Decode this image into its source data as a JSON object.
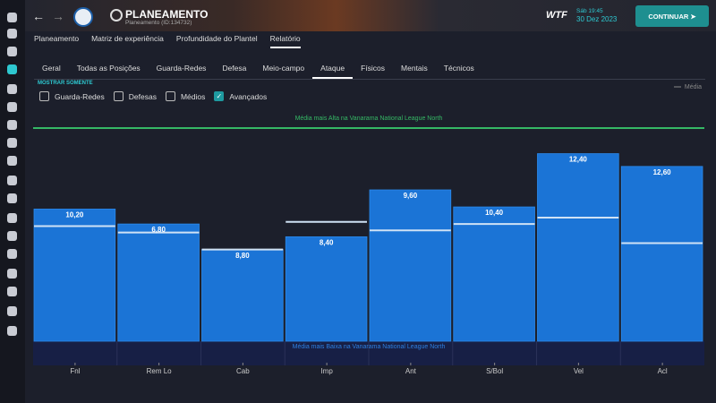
{
  "header": {
    "title": "PLANEAMENTO",
    "subtitle": "Planeamento (ID:134732)",
    "logo": "WTF",
    "day_time": "Sáb 19:45",
    "date": "30 Dez 2023",
    "button": "CONTINUAR"
  },
  "nav": {
    "items": [
      "Planeamento",
      "Matriz de experiência",
      "Profundidade do Plantel",
      "Relatório"
    ],
    "selected": 3
  },
  "tabs": {
    "items": [
      "Geral",
      "Todas as Posições",
      "Guarda-Redes",
      "Defesa",
      "Meio-campo",
      "Ataque",
      "Físicos",
      "Mentais",
      "Técnicos"
    ],
    "selected": 5
  },
  "filter": {
    "label": "MOSTRAR SOMENTE",
    "options": [
      {
        "label": "Guarda-Redes",
        "checked": false
      },
      {
        "label": "Defesas",
        "checked": false
      },
      {
        "label": "Médios",
        "checked": false
      },
      {
        "label": "Avançados",
        "checked": true
      }
    ]
  },
  "chart_data": {
    "type": "bar",
    "legend": "Média",
    "top_label": "Média mais Alta na Vanarama National League North",
    "bottom_label": "Média mais Baixa na Vanarama National League North",
    "categories": [
      "Fnl",
      "Rem Lo",
      "Cab",
      "Imp",
      "Ant",
      "S/Bol",
      "Vel",
      "Acl"
    ],
    "values": [
      62,
      55,
      43,
      49,
      71,
      63,
      88,
      82
    ],
    "averages": [
      54,
      51,
      43,
      56,
      52,
      55,
      58,
      46
    ],
    "ratings": [
      10.2,
      6.8,
      8.8,
      8.4,
      9.6,
      10.4,
      12.4,
      12.6
    ],
    "rating_labels": [
      "10,20",
      "6,80",
      "8,80",
      "8,40",
      "9,60",
      "10,40",
      "12,40",
      "12,60"
    ],
    "ylim": [
      0,
      100
    ],
    "color": "#1b74d6",
    "average_color": "#cfe2f5",
    "top_color": "#35b865"
  }
}
